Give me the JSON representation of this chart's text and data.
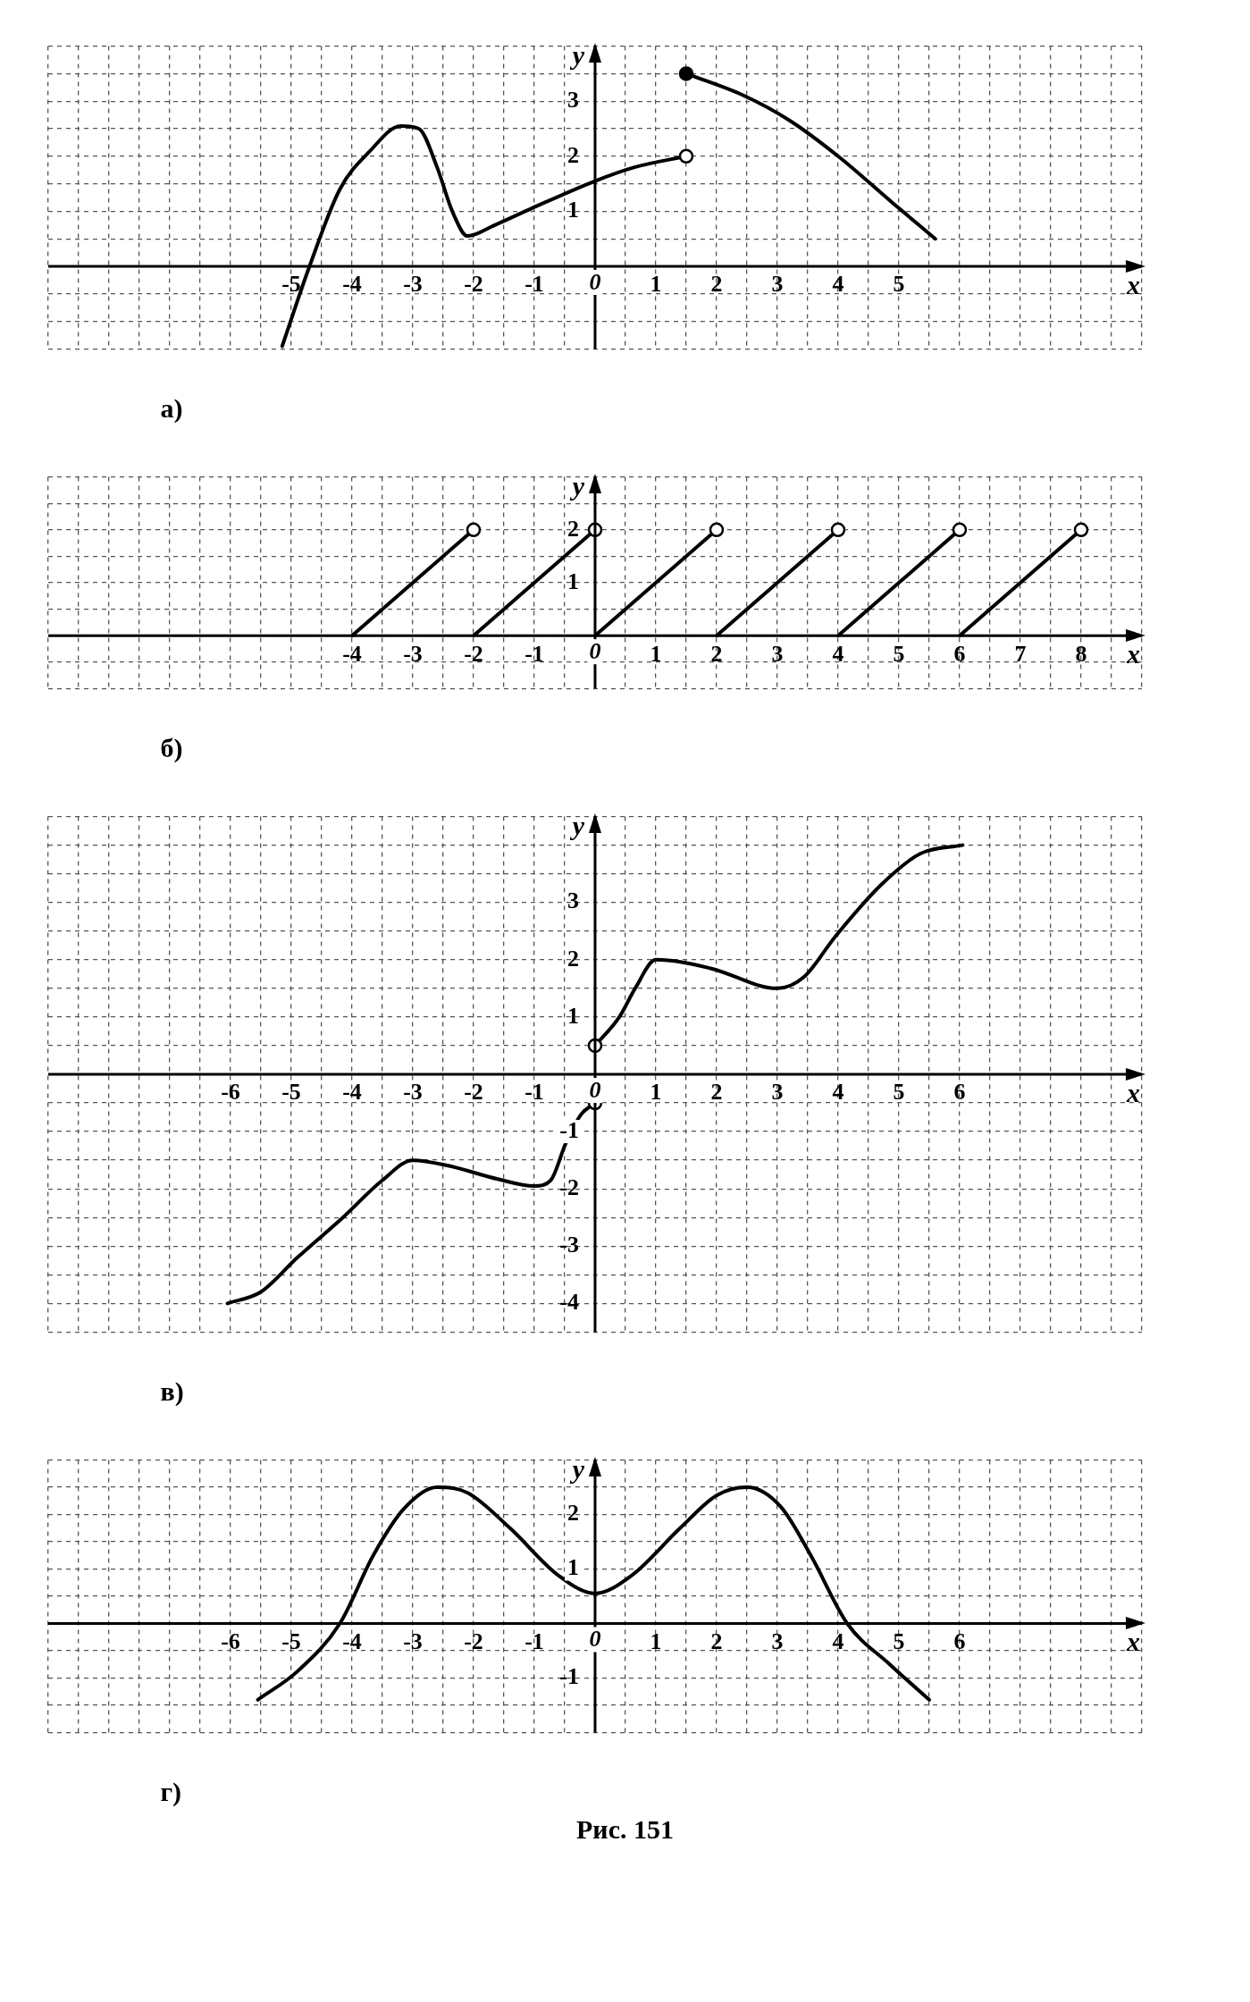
{
  "chart_data": [
    {
      "type": "line",
      "xlabel": "x",
      "ylabel": "y",
      "grid": true,
      "annotations": [
        "а)"
      ],
      "xlim": [
        -9,
        9
      ],
      "ylim": [
        -1.5,
        4
      ],
      "xticks": [
        {
          "value": -9,
          "label": null
        },
        {
          "value": -8.5,
          "label": null
        },
        {
          "value": -8,
          "label": null
        },
        {
          "value": -7.5,
          "label": null
        },
        {
          "value": -7,
          "label": null
        },
        {
          "value": -6.5,
          "label": null
        },
        {
          "value": -6,
          "label": null
        },
        {
          "value": -5.5,
          "label": null
        },
        -5,
        {
          "value": -4.5,
          "label": null
        },
        -4,
        {
          "value": -3.5,
          "label": null
        },
        -3,
        {
          "value": -2.5,
          "label": null
        },
        -2,
        {
          "value": -1.5,
          "label": null
        },
        -1,
        {
          "value": -0.5,
          "label": null
        },
        0,
        {
          "value": 0.5,
          "label": null
        },
        1,
        {
          "value": 1.5,
          "label": null
        },
        2,
        {
          "value": 2.5,
          "label": null
        },
        3,
        {
          "value": 3.5,
          "label": null
        },
        4,
        {
          "value": 4.5,
          "label": null
        },
        5,
        {
          "value": 5.5,
          "label": null
        },
        {
          "value": 6,
          "label": null
        },
        {
          "value": 6.5,
          "label": null
        },
        {
          "value": 7,
          "label": null
        },
        {
          "value": 7.5,
          "label": null
        },
        {
          "value": 8,
          "label": null
        },
        {
          "value": 8.5,
          "label": null
        },
        {
          "value": 9,
          "label": null
        }
      ],
      "yticks": [
        {
          "value": -1.5,
          "label": null
        },
        {
          "value": -1,
          "label": null
        },
        {
          "value": -0.5,
          "label": null
        },
        {
          "value": 0,
          "label": null
        },
        {
          "value": 0.5,
          "label": null
        },
        1,
        {
          "value": 1.5,
          "label": null
        },
        2,
        {
          "value": 2.5,
          "label": null
        },
        3,
        {
          "value": 3.5,
          "label": null
        },
        {
          "value": 4,
          "label": null
        }
      ],
      "series": [
        {
          "type": "line",
          "color": "#000000",
          "x": [
            -5.15,
            -4.7,
            -4.2,
            -3.7,
            -3.2,
            -2.9,
            -2.6,
            -2.35,
            -2.1,
            -1.65,
            -1.05,
            0,
            0.65,
            1.5
          ],
          "values": [
            -1.45,
            0,
            1.4,
            2.1,
            2.55,
            2.5,
            1.8,
            1,
            0.55,
            0.75,
            1.05,
            1.55,
            1.8,
            2
          ]
        },
        {
          "type": "line",
          "color": "#000000",
          "x": [
            1.5,
            2.45,
            3.2,
            4,
            4.9,
            5.6
          ],
          "values": [
            3.5,
            3.1,
            2.65,
            2,
            1.15,
            0.5
          ]
        },
        {
          "type": "scatter",
          "marker": "circle",
          "color": "#ffffff",
          "x": [
            1.5
          ],
          "values": [
            2
          ]
        },
        {
          "type": "scatter",
          "marker": "circle",
          "color": "#000000",
          "x": [
            1.5
          ],
          "values": [
            3.5
          ]
        }
      ]
    },
    {
      "type": "line",
      "xlabel": "x",
      "ylabel": "y",
      "grid": true,
      "annotations": [
        "б)"
      ],
      "xlim": [
        -9,
        9
      ],
      "ylim": [
        -1,
        3
      ],
      "xticks": [
        {
          "value": -9,
          "label": null
        },
        {
          "value": -8.5,
          "label": null
        },
        {
          "value": -8,
          "label": null
        },
        {
          "value": -7.5,
          "label": null
        },
        {
          "value": -7,
          "label": null
        },
        {
          "value": -6.5,
          "label": null
        },
        {
          "value": -6,
          "label": null
        },
        {
          "value": -5.5,
          "label": null
        },
        {
          "value": -5,
          "label": null
        },
        {
          "value": -4.5,
          "label": null
        },
        -4,
        {
          "value": -3.5,
          "label": null
        },
        -3,
        {
          "value": -2.5,
          "label": null
        },
        -2,
        {
          "value": -1.5,
          "label": null
        },
        -1,
        {
          "value": -0.5,
          "label": null
        },
        0,
        {
          "value": 0.5,
          "label": null
        },
        1,
        {
          "value": 1.5,
          "label": null
        },
        2,
        {
          "value": 2.5,
          "label": null
        },
        3,
        {
          "value": 3.5,
          "label": null
        },
        4,
        {
          "value": 4.5,
          "label": null
        },
        5,
        {
          "value": 5.5,
          "label": null
        },
        6,
        {
          "value": 6.5,
          "label": null
        },
        7,
        {
          "value": 7.5,
          "label": null
        },
        8,
        {
          "value": 8.5,
          "label": null
        },
        {
          "value": 9,
          "label": null
        }
      ],
      "yticks": [
        {
          "value": -1,
          "label": null
        },
        {
          "value": -0.5,
          "label": null
        },
        {
          "value": 0,
          "label": null
        },
        {
          "value": 0.5,
          "label": null
        },
        1,
        {
          "value": 1.5,
          "label": null
        },
        2,
        {
          "value": 2.5,
          "label": null
        },
        {
          "value": 3,
          "label": null
        }
      ],
      "series": [
        {
          "type": "line",
          "color": "#000000",
          "x": [
            -4,
            -2
          ],
          "values": [
            0,
            2
          ]
        },
        {
          "type": "line",
          "color": "#000000",
          "x": [
            -2,
            0
          ],
          "values": [
            0,
            2
          ]
        },
        {
          "type": "line",
          "color": "#000000",
          "x": [
            0,
            2
          ],
          "values": [
            0,
            2
          ]
        },
        {
          "type": "line",
          "color": "#000000",
          "x": [
            2,
            4
          ],
          "values": [
            0,
            2
          ]
        },
        {
          "type": "line",
          "color": "#000000",
          "x": [
            4,
            6
          ],
          "values": [
            0,
            2
          ]
        },
        {
          "type": "line",
          "color": "#000000",
          "x": [
            6,
            8
          ],
          "values": [
            0,
            2
          ]
        },
        {
          "type": "scatter",
          "marker": "circle",
          "color": "#ffffff",
          "x": [
            -2,
            0,
            2,
            4,
            6,
            8
          ],
          "values": [
            2,
            2,
            2,
            2,
            2,
            2
          ]
        }
      ]
    },
    {
      "type": "line",
      "xlabel": "x",
      "ylabel": "y",
      "grid": true,
      "annotations": [
        "в)"
      ],
      "xlim": [
        -9,
        9
      ],
      "ylim": [
        -4.5,
        4.5
      ],
      "xticks": [
        {
          "value": -9,
          "label": null
        },
        {
          "value": -8.5,
          "label": null
        },
        {
          "value": -8,
          "label": null
        },
        {
          "value": -7.5,
          "label": null
        },
        {
          "value": -7,
          "label": null
        },
        {
          "value": -6.5,
          "label": null
        },
        -6,
        {
          "value": -5.5,
          "label": null
        },
        -5,
        {
          "value": -4.5,
          "label": null
        },
        -4,
        {
          "value": -3.5,
          "label": null
        },
        -3,
        {
          "value": -2.5,
          "label": null
        },
        -2,
        {
          "value": -1.5,
          "label": null
        },
        -1,
        {
          "value": -0.5,
          "label": null
        },
        0,
        {
          "value": 0.5,
          "label": null
        },
        1,
        {
          "value": 1.5,
          "label": null
        },
        2,
        {
          "value": 2.5,
          "label": null
        },
        3,
        {
          "value": 3.5,
          "label": null
        },
        4,
        {
          "value": 4.5,
          "label": null
        },
        5,
        {
          "value": 5.5,
          "label": null
        },
        6,
        {
          "value": 6.5,
          "label": null
        },
        {
          "value": 7,
          "label": null
        },
        {
          "value": 7.5,
          "label": null
        },
        {
          "value": 8,
          "label": null
        },
        {
          "value": 8.5,
          "label": null
        },
        {
          "value": 9,
          "label": null
        }
      ],
      "yticks": [
        {
          "value": -4.5,
          "label": null
        },
        -4,
        {
          "value": -3.5,
          "label": null
        },
        -3,
        {
          "value": -2.5,
          "label": null
        },
        -2,
        {
          "value": -1.5,
          "label": null
        },
        -1,
        {
          "value": -0.5,
          "label": null
        },
        {
          "value": 0,
          "label": null
        },
        {
          "value": 0.5,
          "label": null
        },
        1,
        {
          "value": 1.5,
          "label": null
        },
        2,
        {
          "value": 2.5,
          "label": null
        },
        3,
        {
          "value": 3.5,
          "label": null
        },
        {
          "value": 4,
          "label": null
        },
        {
          "value": 4.5,
          "label": null
        }
      ],
      "series": [
        {
          "type": "line",
          "color": "#000000",
          "x": [
            -6.05,
            -5.5,
            -4.9,
            -4.15,
            -3.5,
            -3,
            -2.4,
            -1.6,
            -1,
            -0.73,
            -0.48,
            -0.23,
            0
          ],
          "values": [
            -4,
            -3.8,
            -3.2,
            -2.5,
            -1.85,
            -1.5,
            -1.6,
            -1.83,
            -1.95,
            -1.85,
            -1.2,
            -0.7,
            -0.5
          ]
        },
        {
          "type": "line",
          "color": "#000000",
          "x": [
            0,
            0.4,
            0.66,
            1,
            1.9,
            3,
            3.44,
            3.95,
            4.7,
            5.35,
            6.05
          ],
          "values": [
            0.5,
            1,
            1.5,
            2,
            1.85,
            1.5,
            1.7,
            2.4,
            3.3,
            3.85,
            4
          ]
        },
        {
          "type": "scatter",
          "marker": "circle",
          "color": "#ffffff",
          "x": [
            0,
            0
          ],
          "values": [
            -0.5,
            0.5
          ]
        }
      ]
    },
    {
      "type": "line",
      "xlabel": "x",
      "ylabel": "y",
      "grid": true,
      "annotations": [
        "г)",
        "Рис. 151"
      ],
      "xlim": [
        -9,
        9
      ],
      "ylim": [
        -2,
        3
      ],
      "xticks": [
        {
          "value": -9,
          "label": null
        },
        {
          "value": -8.5,
          "label": null
        },
        {
          "value": -8,
          "label": null
        },
        {
          "value": -7.5,
          "label": null
        },
        {
          "value": -7,
          "label": null
        },
        {
          "value": -6.5,
          "label": null
        },
        -6,
        {
          "value": -5.5,
          "label": null
        },
        -5,
        {
          "value": -4.5,
          "label": null
        },
        -4,
        {
          "value": -3.5,
          "label": null
        },
        -3,
        {
          "value": -2.5,
          "label": null
        },
        -2,
        {
          "value": -1.5,
          "label": null
        },
        -1,
        {
          "value": -0.5,
          "label": null
        },
        0,
        {
          "value": 0.5,
          "label": null
        },
        1,
        {
          "value": 1.5,
          "label": null
        },
        2,
        {
          "value": 2.5,
          "label": null
        },
        3,
        {
          "value": 3.5,
          "label": null
        },
        4,
        {
          "value": 4.5,
          "label": null
        },
        5,
        {
          "value": 5.5,
          "label": null
        },
        6,
        {
          "value": 6.5,
          "label": null
        },
        {
          "value": 7,
          "label": null
        },
        {
          "value": 7.5,
          "label": null
        },
        {
          "value": 8,
          "label": null
        },
        {
          "value": 8.5,
          "label": null
        },
        {
          "value": 9,
          "label": null
        }
      ],
      "yticks": [
        {
          "value": -2,
          "label": null
        },
        {
          "value": -1.5,
          "label": null
        },
        -1,
        {
          "value": -0.5,
          "label": null
        },
        {
          "value": 0,
          "label": null
        },
        {
          "value": 0.5,
          "label": null
        },
        1,
        {
          "value": 1.5,
          "label": null
        },
        2,
        {
          "value": 2.5,
          "label": null
        },
        {
          "value": 3,
          "label": null
        }
      ],
      "series": [
        {
          "type": "line",
          "color": "#000000",
          "x": [
            -5.55,
            -4.9,
            -4.2,
            -3.65,
            -3.15,
            -2.6,
            -2.1,
            -1.4,
            -0.6,
            0,
            0.6,
            1.4,
            2,
            2.5,
            3.05,
            3.55,
            4.15,
            4.85,
            5.5
          ],
          "values": [
            -1.4,
            -0.88,
            0,
            1.25,
            2.1,
            2.5,
            2.4,
            1.75,
            0.88,
            0.55,
            0.88,
            1.75,
            2.35,
            2.5,
            2.15,
            1.25,
            0,
            -0.75,
            -1.4
          ]
        }
      ]
    }
  ]
}
